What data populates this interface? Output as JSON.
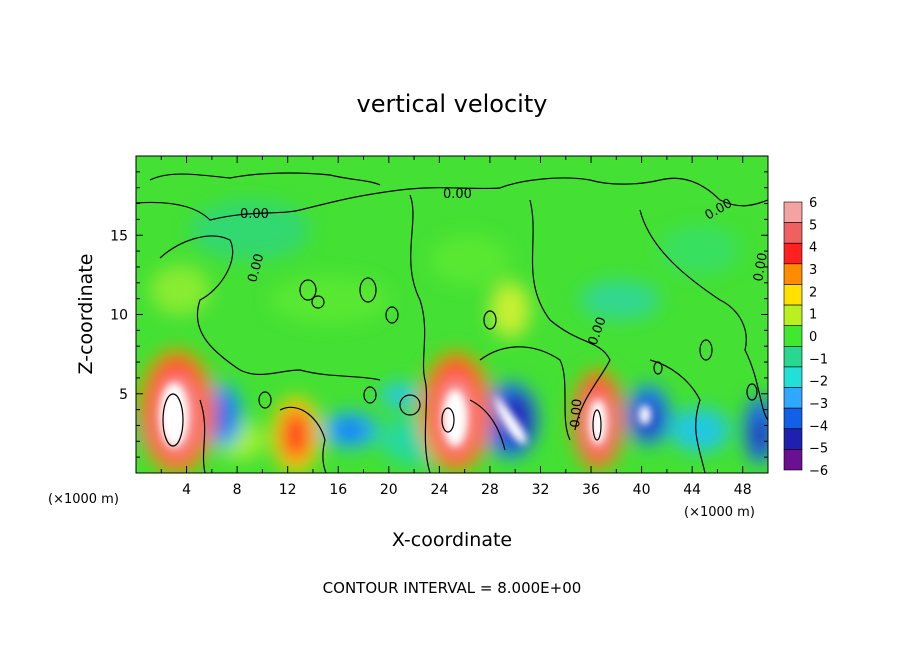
{
  "chart_data": {
    "type": "heatmap",
    "title": "vertical velocity",
    "xlabel": "X-coordinate",
    "ylabel": "Z-coordinate",
    "x_unit": "(×1000 m)",
    "z_unit": "(×1000 m)",
    "xlim": [
      0,
      50
    ],
    "ylim": [
      0,
      20
    ],
    "x_ticks": [
      "4",
      "8",
      "12",
      "16",
      "20",
      "24",
      "28",
      "32",
      "36",
      "40",
      "44",
      "48"
    ],
    "y_ticks": [
      "5",
      "10",
      "15"
    ],
    "colorbar": {
      "ticks": [
        "6",
        "5",
        "4",
        "3",
        "2",
        "1",
        "0",
        "−1",
        "−2",
        "−3",
        "−4",
        "−5",
        "−6"
      ],
      "range": [
        -6,
        6
      ],
      "colors": [
        "#f4a3a3",
        "#f06060",
        "#ff2020",
        "#ff8c00",
        "#ffe000",
        "#b8f020",
        "#40e830",
        "#28d890",
        "#20e0d8",
        "#30a8ff",
        "#1060e8",
        "#2020b0",
        "#6a1090"
      ]
    },
    "contour_labels": [
      "0.00",
      "0.00",
      "0.00",
      "0.00",
      "0.00",
      "0.00",
      "0.00",
      "0.00"
    ],
    "contour_interval": "CONTOUR INTERVAL = 8.000E+00",
    "features": [
      {
        "x": 3.3,
        "z": 3.8,
        "w": 1.6,
        "kind": "updraft"
      },
      {
        "x": 12.7,
        "z": 2.5,
        "w": 0.8,
        "kind": "updraft"
      },
      {
        "x": 25.0,
        "z": 3.9,
        "w": 1.5,
        "kind": "updraft"
      },
      {
        "x": 36.5,
        "z": 3.3,
        "w": 1.4,
        "kind": "updraft"
      },
      {
        "x": 29.3,
        "z": 3.4,
        "w": -1.2,
        "kind": "downdraft"
      },
      {
        "x": 40.2,
        "z": 3.7,
        "w": -1.0,
        "kind": "downdraft"
      },
      {
        "x": 7.9,
        "z": 4.0,
        "w": -0.7,
        "kind": "downdraft"
      },
      {
        "x": 49.2,
        "z": 2.8,
        "w": -0.7,
        "kind": "downdraft"
      }
    ]
  }
}
